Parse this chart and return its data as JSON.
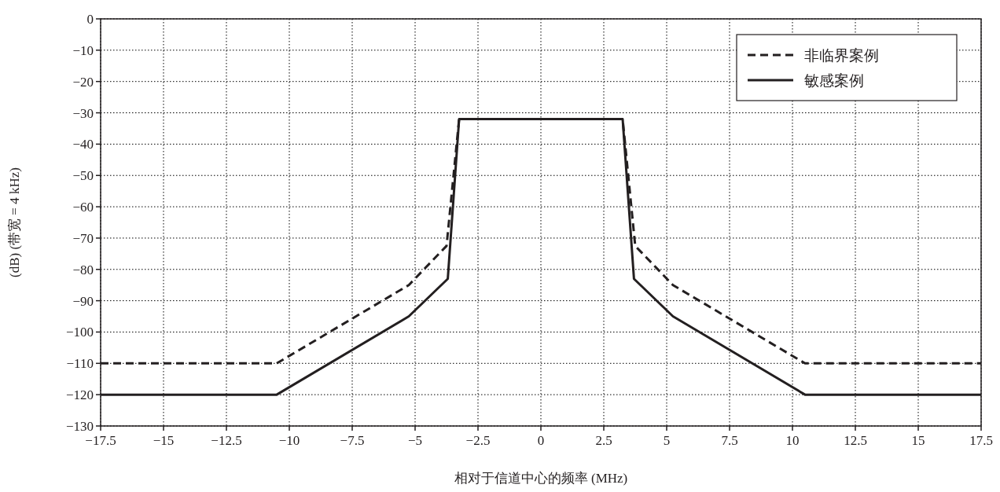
{
  "chart_data": {
    "type": "line",
    "xlabel": "相对于信道中心的频率 (MHz)",
    "ylabel": "(dB) (带宽 = 4 kHz)",
    "xlim": [
      -17.5,
      17.5
    ],
    "xticks": [
      -17.5,
      -15,
      -12.5,
      -10,
      -7.5,
      -5,
      -2.5,
      0,
      2.5,
      5,
      7.5,
      10,
      12.5,
      15,
      17.5
    ],
    "ylim": [
      -130,
      0
    ],
    "yticks": [
      0,
      -10,
      -20,
      -30,
      -40,
      -50,
      -60,
      -70,
      -80,
      -90,
      -100,
      -110,
      -120,
      -130
    ],
    "grid": true,
    "legend": "top right",
    "marker": "none",
    "series": [
      {
        "name": "非临界案例",
        "color": "#231f20",
        "line_style": "dashed",
        "x": [
          -17.5,
          -10.5,
          -5.25,
          -3.75,
          -3.25,
          0,
          3.25,
          3.75,
          5.25,
          10.5,
          17.5
        ],
        "values": [
          -110,
          -110,
          -85,
          -72.5,
          -32,
          -32,
          -32,
          -72.5,
          -85,
          -110,
          -110
        ]
      },
      {
        "name": "敏感案例",
        "color": "#231f20",
        "line_style": "solid",
        "x": [
          -17.5,
          -10.5,
          -5.25,
          -3.7,
          -3.25,
          3.25,
          3.7,
          5.25,
          10.5,
          17.5
        ],
        "values": [
          -120,
          -120,
          -95,
          -83,
          -32,
          -32,
          -83,
          -95,
          -120,
          -120
        ]
      }
    ]
  }
}
